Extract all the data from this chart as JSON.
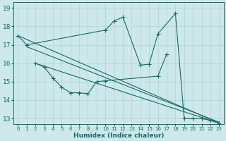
{
  "xlabel": "Humidex (Indice chaleur)",
  "bg_color": "#cce8e8",
  "line_color": "#1a6b6b",
  "grid_major_color": "#b0d4d4",
  "grid_minor_color": "#d8eeee",
  "xlim": [
    -0.5,
    23.5
  ],
  "ylim": [
    12.7,
    19.3
  ],
  "xticks": [
    0,
    1,
    2,
    3,
    4,
    5,
    6,
    7,
    8,
    9,
    10,
    11,
    12,
    13,
    14,
    15,
    16,
    17,
    18,
    19,
    20,
    21,
    22,
    23
  ],
  "yticks": [
    13,
    14,
    15,
    16,
    17,
    18,
    19
  ],
  "series": [
    {
      "x": [
        0,
        1,
        10,
        11,
        12,
        14,
        15,
        16,
        18,
        19,
        20,
        21,
        22,
        23
      ],
      "y": [
        17.5,
        17.0,
        17.8,
        18.3,
        18.5,
        15.9,
        15.95,
        17.6,
        18.7,
        13.0,
        13.0,
        13.0,
        12.9,
        12.75
      ],
      "has_markers": true,
      "connected": false
    },
    {
      "x": [
        2,
        3,
        4,
        5,
        6,
        7,
        8,
        9,
        10,
        16,
        17
      ],
      "y": [
        16.0,
        15.8,
        15.2,
        14.7,
        14.4,
        14.4,
        14.35,
        15.0,
        15.05,
        15.3,
        16.5
      ],
      "has_markers": true,
      "connected": false
    },
    {
      "x": [
        0,
        23
      ],
      "y": [
        17.5,
        12.75
      ],
      "has_markers": false,
      "connected": true
    },
    {
      "x": [
        1,
        23
      ],
      "y": [
        16.9,
        12.8
      ],
      "has_markers": false,
      "connected": true
    },
    {
      "x": [
        2,
        23
      ],
      "y": [
        16.0,
        12.75
      ],
      "has_markers": false,
      "connected": true
    }
  ]
}
